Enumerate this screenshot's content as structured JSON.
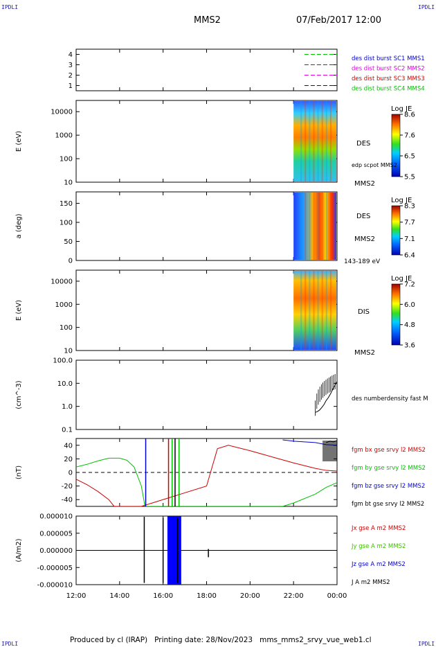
{
  "corner_labels": [
    "IPDLI",
    "IPDLI",
    "IPDLI",
    "IPDLI"
  ],
  "header": {
    "spacecraft": "MMS2",
    "datetime": "07/Feb/2017 12:00"
  },
  "footer": "Produced by cl (IRAP)   Printing date: 28/Nov/2023   mms_mms2_srvy_vue_web1.cl",
  "time_axis": {
    "start": "12:00",
    "end": "00:00",
    "ticks": [
      "12:00",
      "14:00",
      "16:00",
      "18:00",
      "20:00",
      "22:00",
      "00:00"
    ]
  },
  "chart_data": [
    {
      "id": "availability",
      "type": "line",
      "ylim": [
        0.5,
        4.5
      ],
      "yticks": [
        "1",
        "2",
        "3",
        "4"
      ],
      "bars": [
        {
          "y": 4,
          "color": "#00c000",
          "from": "22:30",
          "to": "00:00"
        },
        {
          "y": 3,
          "color": "#d00000",
          "from": "22:30",
          "to": "00:00"
        },
        {
          "y": 2,
          "color": "#e000e0",
          "from": "22:30",
          "to": "00:00"
        },
        {
          "y": 1,
          "color": "#0000d0",
          "from": "22:30",
          "to": "00:00"
        }
      ],
      "legend": [
        {
          "text": "des dist burst SC1 MMS1",
          "color": "#0000d0"
        },
        {
          "text": "des dist burst SC2 MMS2",
          "color": "#e000e0"
        },
        {
          "text": "des dist burst SC3 MMS3",
          "color": "#d00000"
        },
        {
          "text": "des dist burst SC4 MMS4",
          "color": "#00c000"
        }
      ]
    },
    {
      "id": "des-energy",
      "type": "heatmap",
      "ylabel": "E (eV)",
      "scale": "log",
      "ylim": [
        10,
        30000
      ],
      "yticks": [
        "10",
        "100",
        "1000",
        "10000"
      ],
      "data_from": "22:00",
      "data_to": "00:00",
      "side_labels": [
        "DES",
        "edp scpot MMS2",
        "MMS2"
      ],
      "colorbar": {
        "title": "Log JE",
        "ticks": [
          "8.6",
          "7.6",
          "6.5",
          "5.5"
        ]
      }
    },
    {
      "id": "des-pitch",
      "type": "heatmap",
      "ylabel": "a (deg)",
      "ylim": [
        0,
        180
      ],
      "yticks": [
        "0",
        "50",
        "100",
        "150"
      ],
      "data_from": "22:00",
      "data_to": "00:00",
      "side_labels": [
        "DES",
        "MMS2",
        "143-189 eV"
      ],
      "colorbar": {
        "title": "Log JE",
        "ticks": [
          "8.3",
          "7.7",
          "7.1",
          "6.4"
        ]
      }
    },
    {
      "id": "dis-energy",
      "type": "heatmap",
      "ylabel": "E (eV)",
      "scale": "log",
      "ylim": [
        10,
        30000
      ],
      "yticks": [
        "10",
        "100",
        "1000",
        "10000"
      ],
      "data_from": "22:00",
      "data_to": "00:00",
      "side_labels": [
        "DIS",
        "MMS2"
      ],
      "colorbar": {
        "title": "Log JE",
        "ticks": [
          "7.2",
          "6.0",
          "4.8",
          "3.6"
        ]
      }
    },
    {
      "id": "density",
      "type": "line",
      "ylabel": "(cm^-3)",
      "scale": "log",
      "ylim": [
        0.1,
        100
      ],
      "yticks": [
        "0.1",
        "1.0",
        "10.0",
        "100.0"
      ],
      "series": [
        {
          "name": "des numberdensity fast M",
          "color": "#000000",
          "x": [
            "23:00",
            "23:06",
            "23:12",
            "23:18",
            "23:24",
            "23:30",
            "23:36",
            "23:42",
            "23:48",
            "23:54",
            "00:00"
          ],
          "y": [
            0.55,
            0.6,
            0.7,
            0.9,
            1.2,
            1.8,
            2.4,
            3.5,
            5.5,
            8.0,
            12.0
          ]
        }
      ]
    },
    {
      "id": "fgm",
      "type": "line",
      "ylabel": "(nT)",
      "ylim": [
        -50,
        50
      ],
      "yticks": [
        "-40",
        "-20",
        "0",
        "20",
        "40"
      ],
      "series": [
        {
          "name": "fgm bx gse srvy l2 MMS2",
          "color": "#d00000",
          "x": [
            "12:00",
            "12:30",
            "13:00",
            "13:30",
            "13:45",
            "15:00",
            "18:00",
            "18:30",
            "19:00",
            "20:00",
            "21:00",
            "22:00",
            "23:00",
            "23:30",
            "00:00"
          ],
          "y": [
            -10,
            -18,
            -28,
            -40,
            -50,
            -50,
            -20,
            35,
            40,
            32,
            23,
            14,
            6,
            3,
            2
          ]
        },
        {
          "name": "fgm by gse srvy l2 MMS2",
          "color": "#00c000",
          "x": [
            "12:00",
            "12:30",
            "13:00",
            "13:30",
            "14:00",
            "14:20",
            "14:40",
            "15:00",
            "15:10",
            "21:30",
            "22:00",
            "23:00",
            "23:30",
            "00:00"
          ],
          "y": [
            8,
            12,
            17,
            21,
            21,
            18,
            8,
            -20,
            -50,
            -50,
            -45,
            -32,
            -22,
            -15
          ]
        },
        {
          "name": "fgm bz gse srvy l2 MMS2",
          "color": "#0000d0",
          "x": [
            "21:30",
            "22:00",
            "22:30",
            "23:00",
            "23:30",
            "00:00"
          ],
          "y": [
            48,
            46,
            45,
            44,
            41,
            40
          ]
        },
        {
          "name": "fgm bt gse srvy l2 MMS2",
          "color": "#000000",
          "x": [
            "23:30",
            "23:40",
            "23:50",
            "00:00"
          ],
          "y": [
            44,
            46,
            45,
            47
          ]
        }
      ]
    },
    {
      "id": "current",
      "type": "line",
      "ylabel": "(A/m2)",
      "ylim": [
        -1e-05,
        1e-05
      ],
      "yticks": [
        "-0.000010",
        "-0.000005",
        "0.000000",
        "0.000005",
        "0.000010"
      ],
      "series": [
        {
          "name": "Jx gse A m2 MMS2",
          "color": "#d00000"
        },
        {
          "name": "Jy gse A m2 MMS2",
          "color": "#40c000"
        },
        {
          "name": "Jz gse A m2 MMS2",
          "color": "#0000d0"
        },
        {
          "name": "J A m2 MMS2",
          "color": "#000000"
        }
      ],
      "spikes": [
        {
          "t": "15:08",
          "hi": 9.8e-06,
          "lo": -9.5e-06
        },
        {
          "t": "16:00",
          "hi": 9.5e-06,
          "lo": -9.5e-06
        },
        {
          "t": "16:40",
          "hi": 9.5e-06,
          "lo": -9.5e-06
        },
        {
          "t": "18:05",
          "hi": 4e-07,
          "lo": -2e-06
        }
      ],
      "blue_block": {
        "from": "16:12",
        "to": "16:50"
      }
    }
  ]
}
